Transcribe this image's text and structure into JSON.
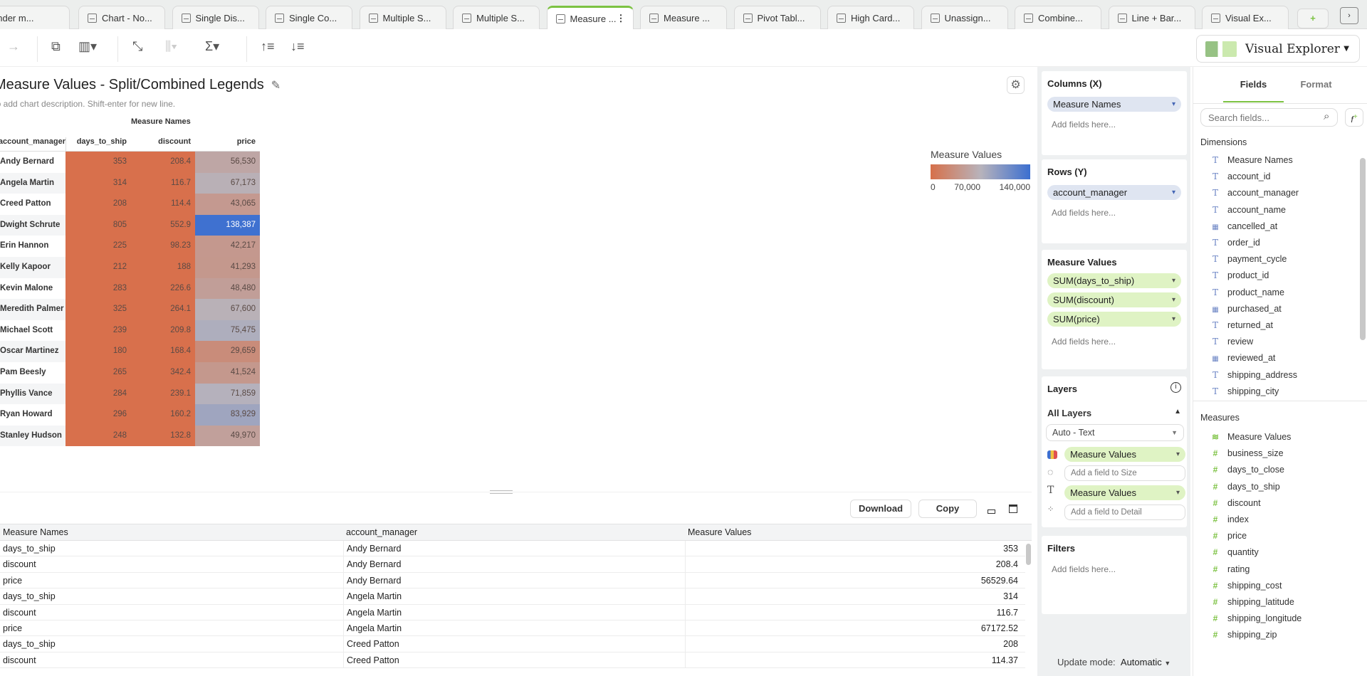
{
  "tabs": [
    {
      "label": "under m...",
      "icon": "chart-icon"
    },
    {
      "label": "Chart - No...",
      "icon": "chart-icon"
    },
    {
      "label": "Single Dis...",
      "icon": "chart-icon"
    },
    {
      "label": "Single Co...",
      "icon": "chart-icon"
    },
    {
      "label": "Multiple S...",
      "icon": "chart-icon"
    },
    {
      "label": "Multiple S...",
      "icon": "chart-icon"
    },
    {
      "label": "Measure ...",
      "icon": "chart-icon",
      "active": true
    },
    {
      "label": "Measure ...",
      "icon": "chart-icon"
    },
    {
      "label": "Pivot Tabl...",
      "icon": "table-icon"
    },
    {
      "label": "High Card...",
      "icon": "chart-icon"
    },
    {
      "label": "Unassign...",
      "icon": "chart-icon"
    },
    {
      "label": "Combine...",
      "icon": "chart-icon"
    },
    {
      "label": "Line + Bar...",
      "icon": "line-bar-icon"
    },
    {
      "label": "Visual Ex...",
      "icon": "chart-icon"
    }
  ],
  "accent": "#7cc242",
  "mode_selector": {
    "label": "Visual Explorer"
  },
  "chart": {
    "title": "Measure Values - Split/Combined Legends",
    "description_hint": "Click to add chart description. Shift-enter for new line.",
    "column_group": "Measure Names",
    "row_header": "account_manager",
    "columns": [
      "days_to_ship",
      "discount",
      "price"
    ],
    "rows": [
      {
        "name": "Andy Bernard",
        "values": [
          "353",
          "208.4",
          "56,530"
        ],
        "price": 56530
      },
      {
        "name": "Angela Martin",
        "values": [
          "314",
          "116.7",
          "67,173"
        ],
        "price": 67173
      },
      {
        "name": "Creed Patton",
        "values": [
          "208",
          "114.4",
          "43,065"
        ],
        "price": 43065
      },
      {
        "name": "Dwight Schrute",
        "values": [
          "805",
          "552.9",
          "138,387"
        ],
        "price": 138387
      },
      {
        "name": "Erin Hannon",
        "values": [
          "225",
          "98.23",
          "42,217"
        ],
        "price": 42217
      },
      {
        "name": "Kelly Kapoor",
        "values": [
          "212",
          "188",
          "41,293"
        ],
        "price": 41293
      },
      {
        "name": "Kevin Malone",
        "values": [
          "283",
          "226.6",
          "48,480"
        ],
        "price": 48480
      },
      {
        "name": "Meredith Palmer",
        "values": [
          "325",
          "264.1",
          "67,600"
        ],
        "price": 67600
      },
      {
        "name": "Michael Scott",
        "values": [
          "239",
          "209.8",
          "75,475"
        ],
        "price": 75475
      },
      {
        "name": "Oscar Martinez",
        "values": [
          "180",
          "168.4",
          "29,659"
        ],
        "price": 29659
      },
      {
        "name": "Pam Beesly",
        "values": [
          "265",
          "342.4",
          "41,524"
        ],
        "price": 41524
      },
      {
        "name": "Phyllis Vance",
        "values": [
          "284",
          "239.1",
          "71,859"
        ],
        "price": 71859
      },
      {
        "name": "Ryan Howard",
        "values": [
          "296",
          "160.2",
          "83,929"
        ],
        "price": 83929
      },
      {
        "name": "Stanley Hudson",
        "values": [
          "248",
          "132.8",
          "49,970"
        ],
        "price": 49970
      }
    ],
    "legend": {
      "title": "Measure Values",
      "ticks": [
        "0",
        "70,000",
        "140,000"
      ],
      "min": 0,
      "max": 140000,
      "color_low": "#d6704a",
      "color_mid": "#b8b3bb",
      "color_high": "#3c6fd0"
    }
  },
  "data_panel": {
    "download": "Download",
    "copy": "Copy",
    "headers": [
      "Measure Names",
      "account_manager",
      "Measure Values"
    ],
    "rows": [
      [
        "days_to_ship",
        "Andy Bernard",
        "353"
      ],
      [
        "discount",
        "Andy Bernard",
        "208.4"
      ],
      [
        "price",
        "Andy Bernard",
        "56529.64"
      ],
      [
        "days_to_ship",
        "Angela Martin",
        "314"
      ],
      [
        "discount",
        "Angela Martin",
        "116.7"
      ],
      [
        "price",
        "Angela Martin",
        "67172.52"
      ],
      [
        "days_to_ship",
        "Creed Patton",
        "208"
      ],
      [
        "discount",
        "Creed Patton",
        "114.37"
      ]
    ]
  },
  "shelves": {
    "columns": {
      "title": "Columns (X)",
      "pill": "Measure Names",
      "add": "Add fields here..."
    },
    "rows": {
      "title": "Rows (Y)",
      "pill": "account_manager",
      "add": "Add fields here..."
    },
    "measure_values": {
      "title": "Measure Values",
      "pills": [
        "SUM(days_to_ship)",
        "SUM(discount)",
        "SUM(price)"
      ],
      "add": "Add fields here..."
    },
    "layers": {
      "title": "Layers",
      "all_layers": "All Layers",
      "mark_type": "Auto - Text",
      "color": "Measure Values",
      "size": "Add a field to Size",
      "text": "Measure Values",
      "detail": "Add a field to Detail"
    },
    "filters": {
      "title": "Filters",
      "add": "Add fields here..."
    },
    "update_mode_label": "Update mode:",
    "update_mode": "Automatic"
  },
  "fields_panel": {
    "tabs": [
      "Fields",
      "Format"
    ],
    "search_placeholder": "Search fields...",
    "dimensions_label": "Dimensions",
    "dimensions": [
      {
        "name": "Measure Names",
        "type": "measure-names"
      },
      {
        "name": "account_id",
        "type": "text"
      },
      {
        "name": "account_manager",
        "type": "text"
      },
      {
        "name": "account_name",
        "type": "text"
      },
      {
        "name": "cancelled_at",
        "type": "date"
      },
      {
        "name": "order_id",
        "type": "text"
      },
      {
        "name": "payment_cycle",
        "type": "text"
      },
      {
        "name": "product_id",
        "type": "text"
      },
      {
        "name": "product_name",
        "type": "text"
      },
      {
        "name": "purchased_at",
        "type": "date"
      },
      {
        "name": "returned_at",
        "type": "text"
      },
      {
        "name": "review",
        "type": "text"
      },
      {
        "name": "reviewed_at",
        "type": "date"
      },
      {
        "name": "shipping_address",
        "type": "text"
      },
      {
        "name": "shipping_city",
        "type": "text"
      }
    ],
    "measures_label": "Measures",
    "measures": [
      "Measure Values",
      "business_size",
      "days_to_close",
      "days_to_ship",
      "discount",
      "index",
      "price",
      "quantity",
      "rating",
      "shipping_cost",
      "shipping_latitude",
      "shipping_longitude",
      "shipping_zip"
    ]
  }
}
